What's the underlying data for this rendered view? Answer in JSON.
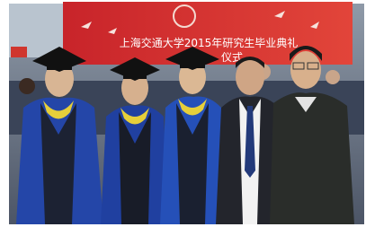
{
  "banner": {
    "line1": "上海交通大学2015年研究生毕业典礼",
    "line2": "仪式"
  }
}
